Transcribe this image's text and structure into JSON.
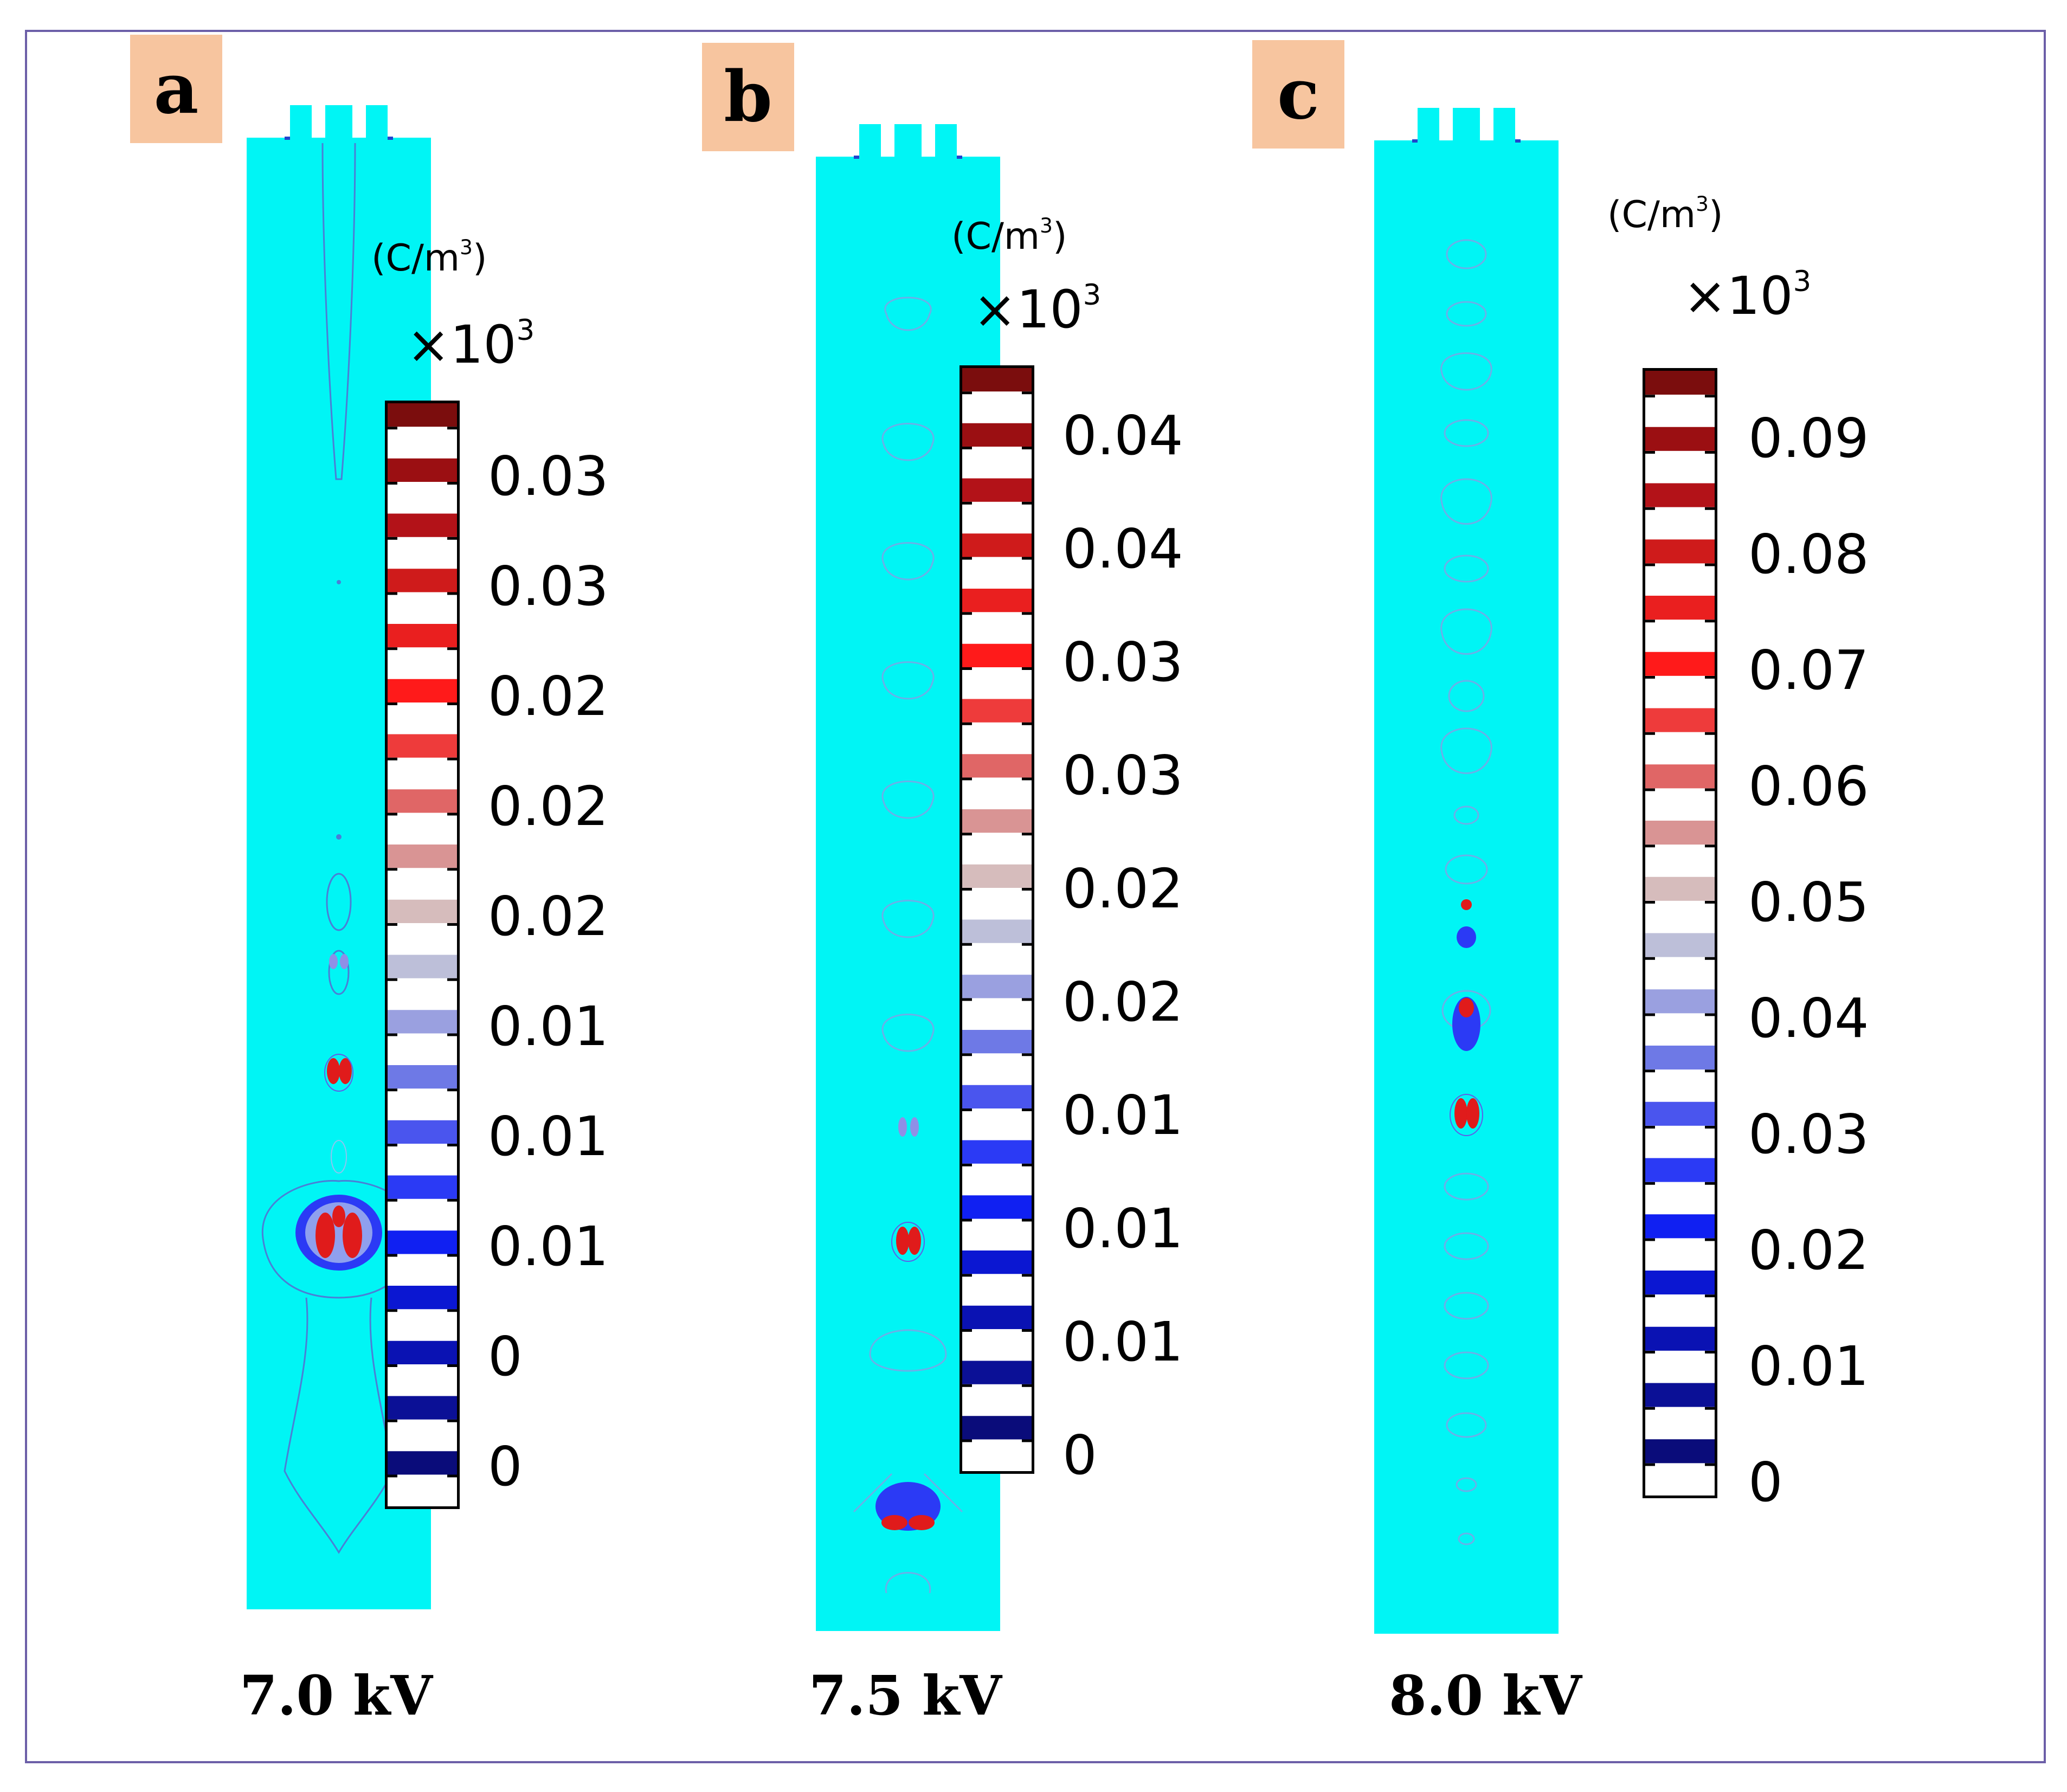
{
  "figure": {
    "panels": [
      {
        "label": "a",
        "voltage": "7.0 kV",
        "unit_prefix": "(C/m",
        "unit_exp": "3",
        "unit_suffix": ")",
        "multiplier_prefix": "×10",
        "multiplier_exp": "3",
        "ticks": [
          "0.03",
          "0.03",
          "0.02",
          "0.02",
          "0.02",
          "0.01",
          "0.01",
          "0.01",
          "0",
          "0"
        ]
      },
      {
        "label": "b",
        "voltage": "7.5 kV",
        "unit_prefix": "(C/m",
        "unit_exp": "3",
        "unit_suffix": ")",
        "multiplier_prefix": "×10",
        "multiplier_exp": "3",
        "ticks": [
          "0.04",
          "0.04",
          "0.03",
          "0.03",
          "0.02",
          "0.02",
          "0.01",
          "0.01",
          "0.01",
          "0"
        ]
      },
      {
        "label": "c",
        "voltage": "8.0 kV",
        "unit_prefix": "(C/m",
        "unit_exp": "3",
        "unit_suffix": ")",
        "multiplier_prefix": "×10",
        "multiplier_exp": "3",
        "ticks": [
          "0.09",
          "0.08",
          "0.07",
          "0.06",
          "0.05",
          "0.04",
          "0.03",
          "0.02",
          "0.01",
          "0"
        ]
      }
    ],
    "colors": {
      "background_field": "#00f5f5",
      "contour": "#4a7fd6",
      "label_box": "#f7c59f",
      "frame": "#6c5fa8",
      "colormap": [
        "#7b0d0d",
        "#9b0f12",
        "#b31218",
        "#cf1b1b",
        "#ea1f1f",
        "#ff1a1a",
        "#ee3b3b",
        "#e06666",
        "#d99494",
        "#d6bcbc",
        "#bdbfd9",
        "#9aa0e0",
        "#6e79e6",
        "#4a55ee",
        "#2b3af5",
        "#1020f2",
        "#0b17d2",
        "#0a12b3",
        "#0b1096",
        "#0a0c7a"
      ]
    }
  }
}
